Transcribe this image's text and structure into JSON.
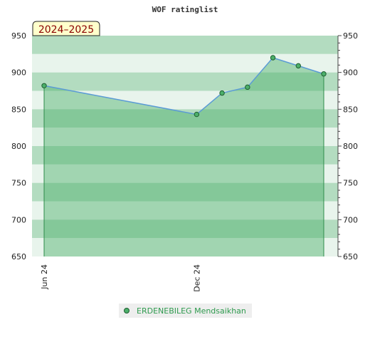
{
  "chart_data": {
    "type": "area",
    "title": "WOF ratinglist",
    "season_label": "2024–2025",
    "xlabel": "",
    "ylabel": "",
    "ylim": [
      650,
      950
    ],
    "y_ticks": [
      650,
      700,
      750,
      800,
      850,
      900,
      950
    ],
    "x_ticks": [
      {
        "label": "Jun 24",
        "x": "2024-06"
      },
      {
        "label": "Dec 24",
        "x": "2024-12"
      }
    ],
    "x_range": [
      "2024-06",
      "2025-05"
    ],
    "grid": "horizontal bands",
    "legend_position": "bottom-center",
    "series": [
      {
        "name": "ERDENEBILEG Mendsaikhan",
        "x": [
          "2024-06",
          "2024-12",
          "2025-01",
          "2025-02",
          "2025-03",
          "2025-04",
          "2025-05"
        ],
        "values": [
          882,
          843,
          872,
          880,
          920,
          909,
          898
        ]
      }
    ],
    "colors": {
      "line": "#5b9bd5",
      "fill": "#4caf6a",
      "marker": "#2e8b4a",
      "band_dark": "#b3dcc0",
      "band_light": "#e8f4ec"
    }
  }
}
